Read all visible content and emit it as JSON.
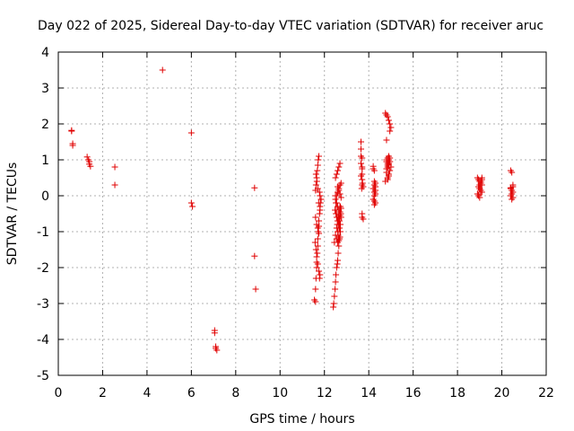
{
  "chart_data": {
    "type": "scatter",
    "title": "Day 022 of 2025, Sidereal Day-to-day VTEC variation (SDTVAR) for receiver aruc",
    "xlabel": "GPS time / hours",
    "ylabel": "SDTVAR / TECUs",
    "xlim": [
      0,
      22
    ],
    "ylim": [
      -5,
      4
    ],
    "xticks": [
      "0",
      "2",
      "4",
      "6",
      "8",
      "10",
      "12",
      "14",
      "16",
      "18",
      "20",
      "22"
    ],
    "yticks": [
      "-5",
      "-4",
      "-3",
      "-2",
      "-1",
      "0",
      "1",
      "2",
      "3",
      "4"
    ],
    "grid": true,
    "marker": "+",
    "color": "#e00000",
    "series": [
      {
        "name": "SDTVAR",
        "x": [
          0.6,
          0.6,
          0.65,
          0.65,
          1.3,
          1.35,
          1.4,
          1.4,
          1.45,
          2.55,
          2.55,
          4.7,
          6.0,
          6.0,
          6.05,
          7.05,
          7.05,
          7.1,
          7.1,
          7.15,
          8.85,
          8.85,
          8.9,
          11.55,
          11.6,
          11.6,
          11.62,
          11.65,
          11.65,
          11.68,
          11.7,
          11.7,
          11.72,
          11.75,
          11.75,
          11.78,
          11.8,
          11.8,
          11.82,
          11.85,
          11.6,
          11.62,
          11.65,
          11.68,
          11.7,
          11.72,
          11.75,
          11.78,
          11.8,
          11.62,
          11.65,
          11.7,
          11.75,
          11.8,
          11.6,
          11.65,
          11.7,
          11.75,
          11.58,
          11.62,
          11.66,
          11.7,
          11.74,
          11.78,
          12.4,
          12.42,
          12.45,
          12.48,
          12.5,
          12.52,
          12.55,
          12.58,
          12.6,
          12.62,
          12.65,
          12.68,
          12.7,
          12.72,
          12.75,
          12.45,
          12.5,
          12.55,
          12.6,
          12.65,
          12.7,
          12.5,
          12.55,
          12.6,
          12.65,
          12.7,
          12.75,
          12.48,
          12.52,
          12.56,
          12.6,
          12.64,
          12.68,
          12.72,
          12.5,
          12.55,
          12.6,
          12.65,
          12.7,
          12.55,
          12.6,
          12.65,
          12.7,
          12.6,
          12.65,
          12.7,
          12.75,
          12.55,
          12.6,
          12.65,
          12.7,
          12.75,
          12.62,
          12.66,
          12.7,
          12.74,
          12.5,
          12.52,
          12.54,
          12.56,
          12.58,
          12.6,
          12.62,
          12.64,
          12.66,
          12.68,
          12.7,
          12.72,
          13.65,
          13.65,
          13.65,
          13.65,
          13.7,
          13.7,
          13.7,
          13.7,
          13.68,
          13.72,
          13.7,
          13.7,
          13.75,
          13.65,
          13.7,
          13.75,
          13.7,
          14.2,
          14.2,
          14.25,
          14.25,
          14.3,
          14.25,
          14.2,
          14.3,
          14.25,
          14.3,
          14.2,
          14.25,
          14.3,
          14.25,
          14.3,
          14.25,
          14.75,
          14.8,
          14.85,
          14.9,
          14.95,
          15.0,
          14.8,
          14.85,
          14.9,
          14.95,
          15.0,
          14.85,
          14.9,
          14.95,
          14.8,
          14.85,
          14.9,
          14.95,
          14.75,
          14.8,
          14.85,
          14.9,
          14.95,
          14.8,
          14.85,
          14.9,
          14.8,
          14.9,
          14.85,
          14.95,
          18.9,
          18.95,
          19.0,
          19.05,
          19.1,
          18.95,
          19.0,
          19.05,
          19.1,
          18.9,
          18.95,
          19.0,
          19.05,
          19.1,
          19.0,
          19.05,
          18.95,
          19.0,
          19.05,
          19.1,
          20.4,
          20.45,
          20.5,
          20.4,
          20.45,
          20.5,
          20.45,
          20.4,
          20.5,
          20.45,
          20.4,
          20.5
        ],
        "y": [
          1.82,
          1.8,
          1.45,
          1.4,
          1.08,
          1.0,
          0.95,
          0.88,
          0.82,
          0.8,
          0.3,
          3.5,
          1.75,
          -0.2,
          -0.3,
          -3.75,
          -3.82,
          -4.2,
          -4.25,
          -4.3,
          0.22,
          -1.68,
          -2.6,
          -2.9,
          -2.95,
          -2.6,
          -2.3,
          -2.0,
          -1.85,
          -1.6,
          -1.4,
          -1.2,
          -1.0,
          -0.85,
          -0.7,
          -0.5,
          -0.4,
          -0.3,
          -0.2,
          -0.1,
          0.15,
          0.3,
          0.5,
          0.7,
          0.85,
          1.0,
          1.1,
          0.1,
          0.0,
          -1.5,
          -1.7,
          -1.9,
          -2.1,
          -2.2,
          -0.6,
          -0.8,
          -0.9,
          -1.05,
          -1.3,
          0.6,
          0.4,
          0.2,
          -0.2,
          -2.3,
          -3.1,
          -3.0,
          -2.8,
          -2.6,
          -2.4,
          -2.2,
          -2.0,
          -1.9,
          -1.8,
          -1.6,
          -1.4,
          -1.2,
          -1.0,
          -0.8,
          -0.6,
          -1.3,
          -1.1,
          -0.9,
          -0.7,
          -0.5,
          -0.3,
          -0.1,
          0.0,
          0.1,
          0.2,
          0.3,
          0.35,
          -0.4,
          -0.5,
          -0.6,
          -0.7,
          -0.8,
          -0.9,
          -1.0,
          0.5,
          0.6,
          0.7,
          0.8,
          0.9,
          -1.2,
          -1.3,
          -1.25,
          -1.15,
          0.25,
          0.15,
          0.05,
          -0.05,
          -0.2,
          -0.3,
          -0.4,
          -0.45,
          -0.35,
          -0.6,
          -0.65,
          -0.55,
          -0.5,
          0.0,
          -0.2,
          -0.4,
          -0.6,
          -0.8,
          -1.0,
          -1.1,
          -1.2,
          -0.9,
          -0.7,
          -0.5,
          -0.3,
          1.5,
          1.3,
          1.1,
          0.9,
          0.75,
          0.6,
          0.45,
          0.3,
          0.2,
          0.35,
          -0.5,
          -0.6,
          -0.65,
          0.55,
          1.05,
          0.25,
          0.8,
          0.82,
          0.75,
          0.7,
          0.4,
          0.35,
          0.3,
          0.2,
          0.15,
          0.1,
          0.05,
          -0.1,
          -0.15,
          -0.2,
          -0.25,
          0.25,
          0.0,
          2.3,
          2.25,
          2.2,
          2.1,
          2.0,
          1.9,
          1.55,
          0.5,
          0.6,
          0.7,
          0.8,
          0.85,
          0.9,
          0.95,
          1.0,
          1.05,
          1.1,
          0.95,
          0.4,
          0.75,
          0.8,
          0.85,
          1.05,
          0.95,
          0.9,
          1.0,
          0.65,
          0.55,
          0.45,
          1.8,
          0.5,
          0.45,
          0.4,
          0.35,
          0.3,
          0.25,
          0.2,
          0.15,
          0.1,
          0.05,
          0.0,
          -0.05,
          0.4,
          0.45,
          0.3,
          0.35,
          0.25,
          0.2,
          0.1,
          0.5,
          0.7,
          0.65,
          0.25,
          0.2,
          0.15,
          0.1,
          0.05,
          0.0,
          -0.05,
          -0.1,
          0.22,
          0.3
        ]
      }
    ]
  }
}
